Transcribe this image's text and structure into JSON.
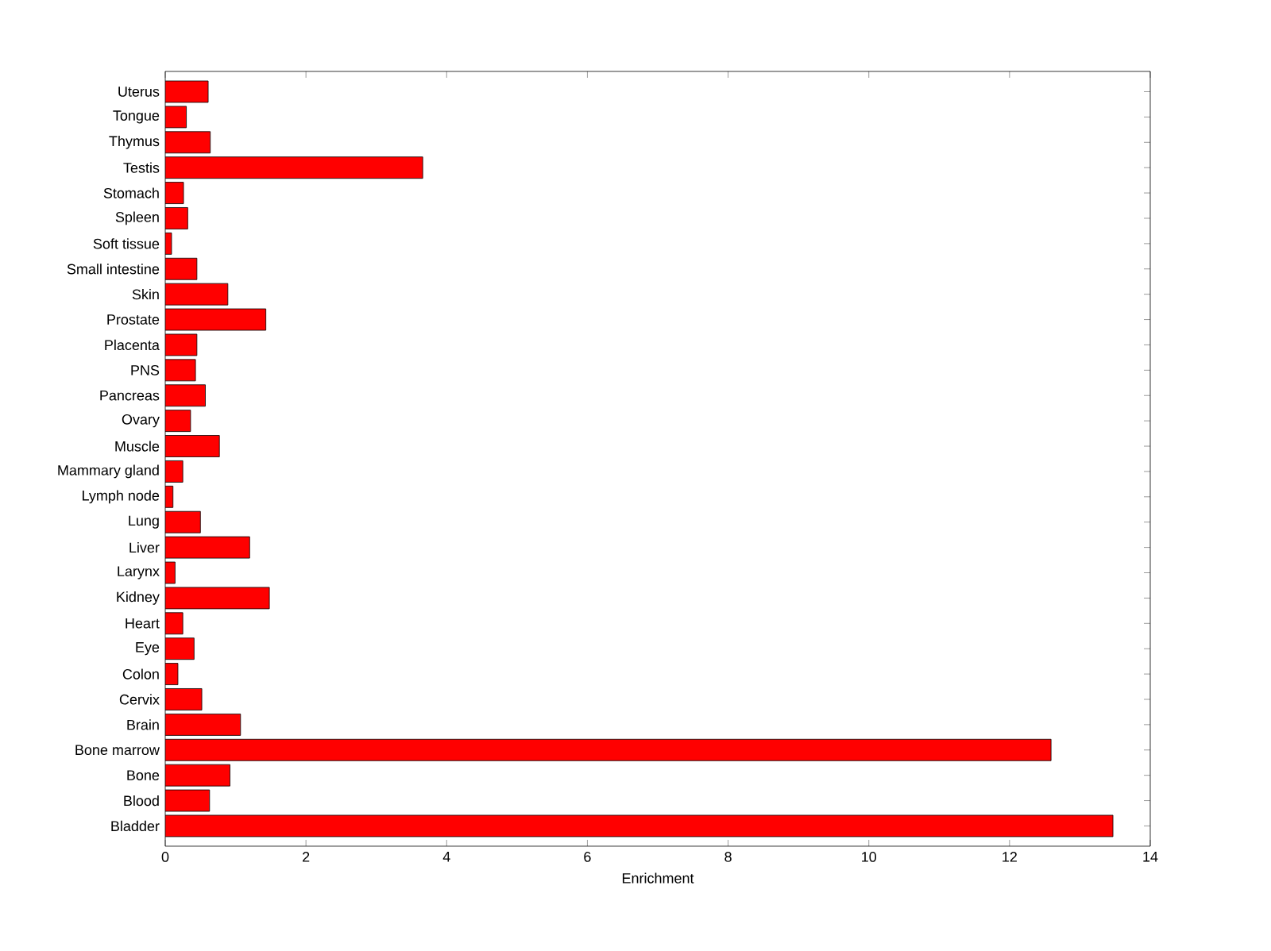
{
  "chart_data": {
    "type": "bar",
    "orientation": "horizontal",
    "xlabel": "Enrichment",
    "categories": [
      "Uterus",
      "Tongue",
      "Thymus",
      "Testis",
      "Stomach",
      "Spleen",
      "Soft tissue",
      "Small intestine",
      "Skin",
      "Prostate",
      "Placenta",
      "PNS",
      "Pancreas",
      "Ovary",
      "Muscle",
      "Mammary gland",
      "Lymph node",
      "Lung",
      "Liver",
      "Larynx",
      "Kidney",
      "Heart",
      "Eye",
      "Colon",
      "Cervix",
      "Brain",
      "Bone marrow",
      "Bone",
      "Blood",
      "Bladder"
    ],
    "values": [
      0.61,
      0.3,
      0.64,
      3.66,
      0.26,
      0.32,
      0.09,
      0.45,
      0.89,
      1.43,
      0.45,
      0.43,
      0.57,
      0.36,
      0.77,
      0.25,
      0.11,
      0.5,
      1.2,
      0.14,
      1.48,
      0.25,
      0.41,
      0.18,
      0.52,
      1.07,
      12.59,
      0.92,
      0.63,
      13.47
    ],
    "color": "#ff0000",
    "xlim": [
      0,
      14
    ],
    "xticks": [
      0,
      2,
      4,
      6,
      8,
      10,
      12,
      14
    ]
  }
}
